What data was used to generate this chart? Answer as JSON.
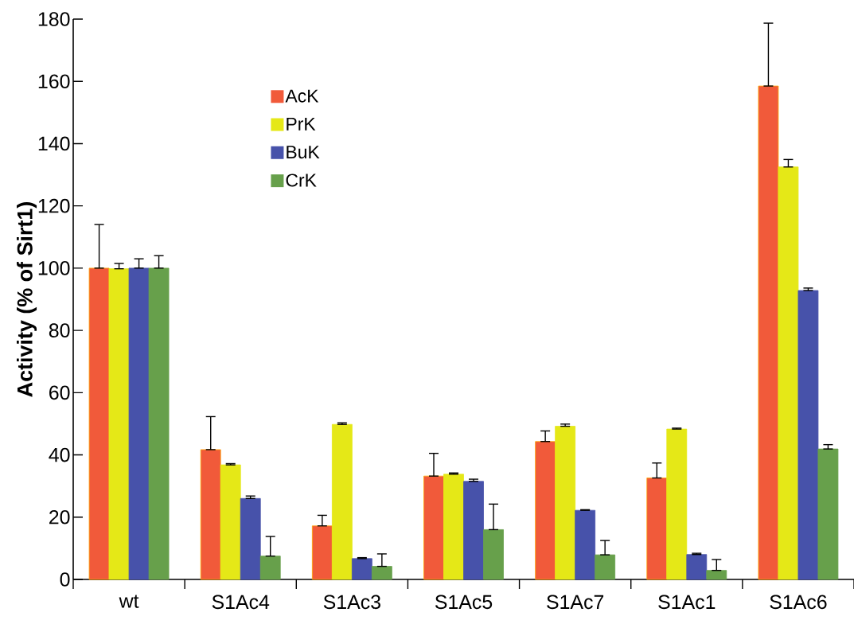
{
  "chart_data": {
    "type": "bar",
    "ylabel": "Activity  (% of Sirt1)",
    "categories": [
      "wt",
      "S1Ac4",
      "S1Ac3",
      "S1Ac5",
      "S1Ac7",
      "S1Ac1",
      "S1Ac6"
    ],
    "series": [
      {
        "name": "AcK",
        "color": "#f15a3a",
        "values": [
          100,
          41.7,
          17.2,
          33.2,
          44.3,
          32.6,
          158.5
        ],
        "errors": [
          [
            100,
            114
          ],
          [
            41.7,
            52.3
          ],
          [
            17.2,
            20.6
          ],
          [
            33.2,
            40.5
          ],
          [
            44.3,
            47.7
          ],
          [
            32.6,
            37.4
          ],
          [
            158.5,
            178.7
          ]
        ]
      },
      {
        "name": "PrK",
        "color": "#e5e817",
        "values": [
          99.8,
          36.8,
          49.8,
          33.8,
          49.2,
          48.3,
          132.5
        ],
        "errors": [
          [
            99.8,
            101.5
          ],
          [
            36.8,
            37.2
          ],
          [
            49.8,
            50.3
          ],
          [
            33.8,
            34.2
          ],
          [
            49.2,
            49.9
          ],
          [
            48.3,
            48.6
          ],
          [
            132.5,
            134.9
          ]
        ]
      },
      {
        "name": "BuK",
        "color": "#4752aa",
        "values": [
          100,
          26,
          6.7,
          31.5,
          22.2,
          8,
          92.8
        ],
        "errors": [
          [
            100,
            103
          ],
          [
            26,
            26.8
          ],
          [
            6.7,
            7.0
          ],
          [
            31.5,
            32.2
          ],
          [
            22.2,
            22.4
          ],
          [
            8,
            8.4
          ],
          [
            92.8,
            93.6
          ]
        ]
      },
      {
        "name": "CrK",
        "color": "#67a04b",
        "values": [
          100,
          7.5,
          4.2,
          16,
          7.9,
          2.9,
          41.9
        ],
        "errors": [
          [
            100,
            104
          ],
          [
            7.5,
            13.8
          ],
          [
            4.2,
            8.2
          ],
          [
            16,
            24.2
          ],
          [
            7.9,
            12.5
          ],
          [
            2.9,
            6.4
          ],
          [
            41.9,
            43.3
          ]
        ]
      }
    ],
    "ylim": [
      0,
      180
    ],
    "yticks": [
      0,
      20,
      40,
      60,
      80,
      100,
      120,
      140,
      160,
      180
    ],
    "legend": "top left"
  }
}
